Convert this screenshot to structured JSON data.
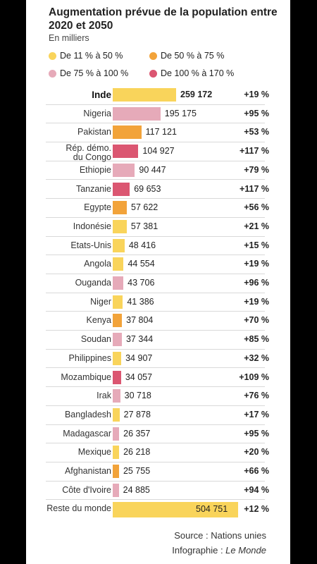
{
  "header": {
    "title": "Augmentation prévue de la population entre 2020 et 2050",
    "unit": "En milliers"
  },
  "legend": [
    {
      "label": "De 11 % à 50 %",
      "color": "#f9d45b"
    },
    {
      "label": "De 50 % à 75 %",
      "color": "#f2a33a"
    },
    {
      "label": "De 75 % à 100 %",
      "color": "#e6aab9"
    },
    {
      "label": "De 100 % à 170 %",
      "color": "#db5671"
    }
  ],
  "chart_data": {
    "type": "bar",
    "orientation": "horizontal",
    "title": "Augmentation prévue de la population entre 2020 et 2050",
    "unit": "En milliers",
    "categories": [
      "Inde",
      "Nigeria",
      "Pakistan",
      "Rép. démo. du Congo",
      "Ethiopie",
      "Tanzanie",
      "Egypte",
      "Indonésie",
      "Etats-Unis",
      "Angola",
      "Ouganda",
      "Niger",
      "Kenya",
      "Soudan",
      "Philippines",
      "Mozambique",
      "Irak",
      "Bangladesh",
      "Madagascar",
      "Mexique",
      "Afghanistan",
      "Côte d'Ivoire",
      "Reste du monde"
    ],
    "values": [
      259172,
      195175,
      117121,
      104927,
      90447,
      69653,
      57622,
      57381,
      48416,
      44554,
      43706,
      41386,
      37804,
      37344,
      34907,
      34057,
      30718,
      27878,
      26357,
      26218,
      25755,
      24885,
      504751
    ],
    "value_labels": [
      "259 172",
      "195 175",
      "117 121",
      "104 927",
      "90 447",
      "69 653",
      "57 622",
      "57 381",
      "48 416",
      "44 554",
      "43 706",
      "41 386",
      "37 804",
      "37 344",
      "34 907",
      "34 057",
      "30 718",
      "27 878",
      "26 357",
      "26 218",
      "25 755",
      "24 885",
      "504 751"
    ],
    "growth_labels": [
      "+19 %",
      "+95 %",
      "+53 %",
      "+117 %",
      "+79 %",
      "+117 %",
      "+56 %",
      "+21 %",
      "+15 %",
      "+19 %",
      "+96 %",
      "+19 %",
      "+70 %",
      "+85 %",
      "+32 %",
      "+109 %",
      "+76 %",
      "+17 %",
      "+95 %",
      "+20 %",
      "+66 %",
      "+94 %",
      "+12 %"
    ],
    "growth_values": [
      19,
      95,
      53,
      117,
      79,
      117,
      56,
      21,
      15,
      19,
      96,
      19,
      70,
      85,
      32,
      109,
      76,
      17,
      95,
      20,
      66,
      94,
      12
    ],
    "legend_placement": "top",
    "grid": false
  },
  "footer": {
    "source": "Source : Nations unies",
    "credit_prefix": "Infographie : ",
    "credit_name": "Le Monde"
  }
}
